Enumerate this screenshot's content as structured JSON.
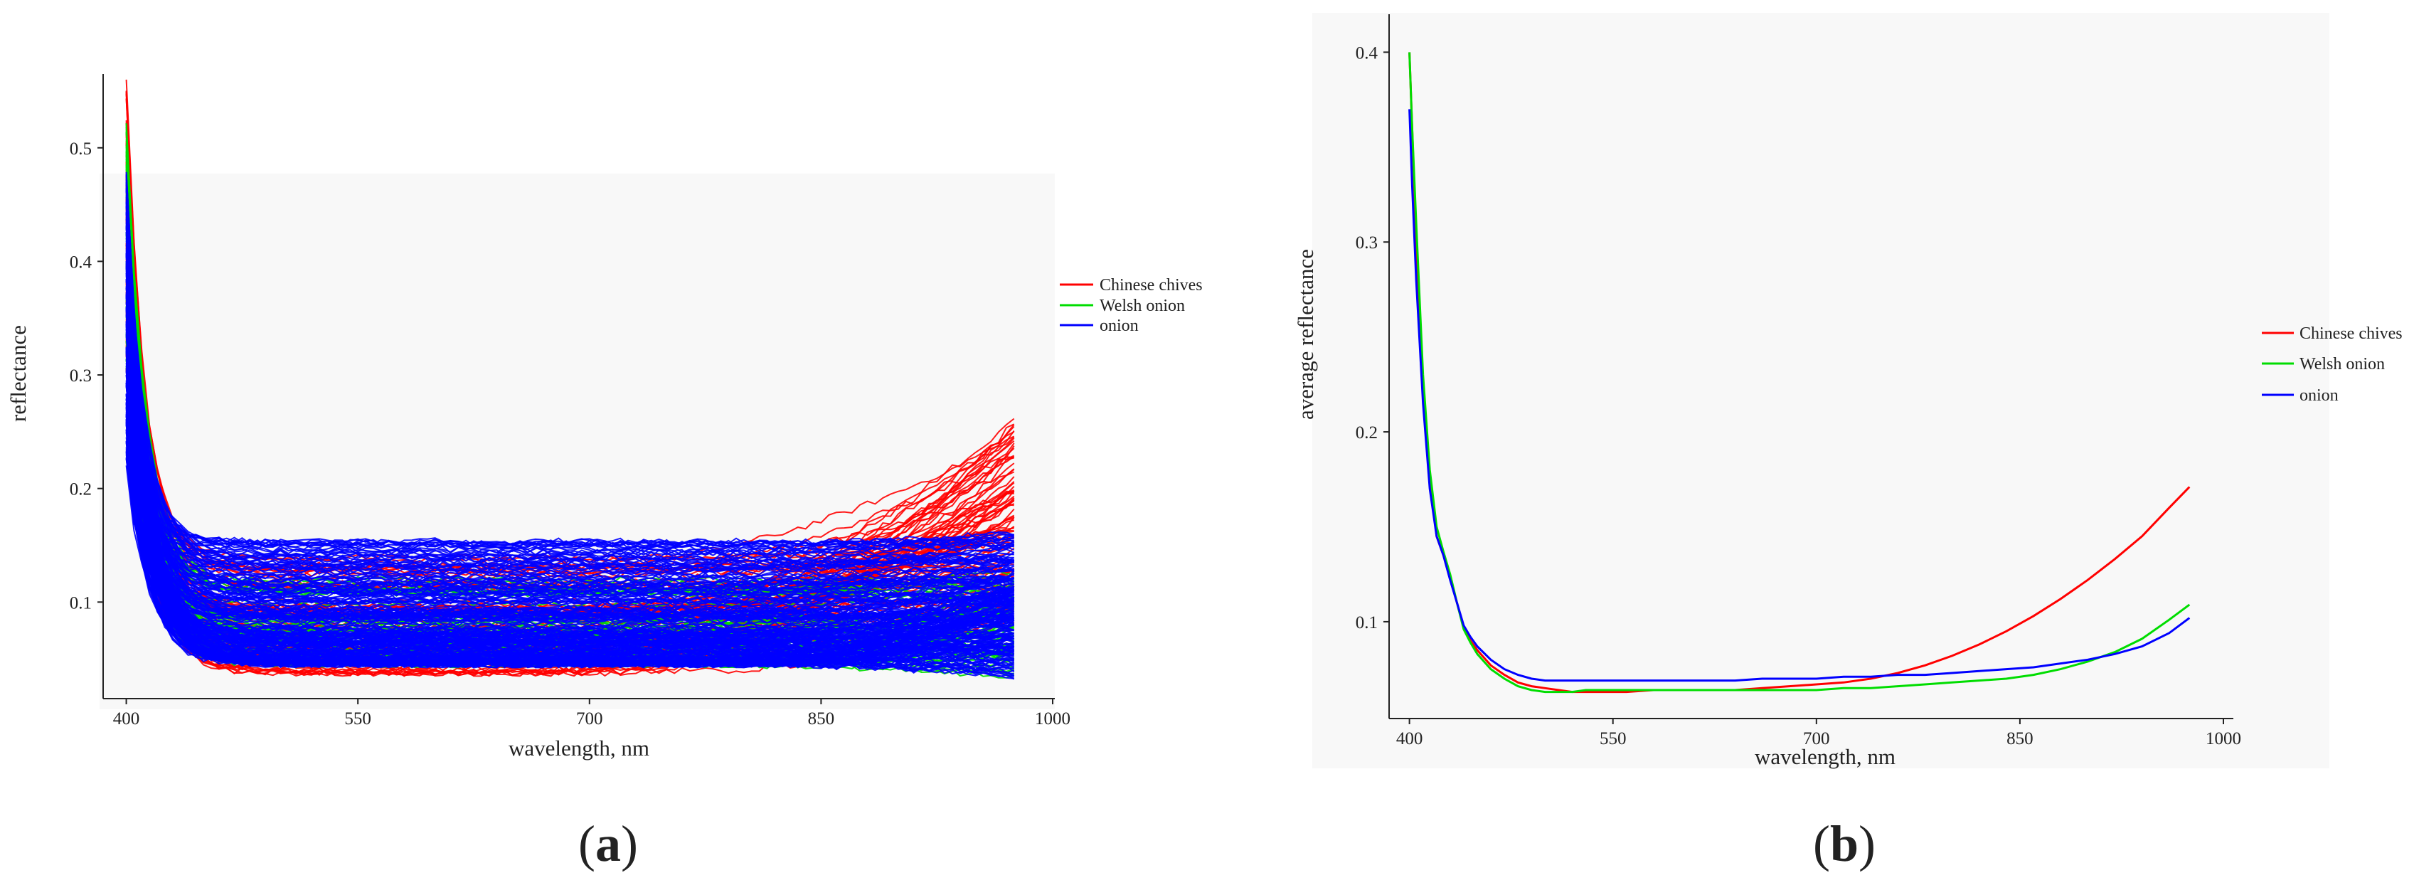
{
  "colors": {
    "Chinese chives": "#ff0000",
    "Welsh onion": "#00dd00",
    "onion": "#0000ff"
  },
  "chart_data": [
    {
      "panel": "(a)",
      "type": "line",
      "xlabel": "wavelength, nm",
      "ylabel": "reflectance",
      "xlim": [
        385,
        1000
      ],
      "ylim": [
        0.015,
        0.565
      ],
      "xticks": [
        "400",
        "550",
        "700",
        "850",
        "1000"
      ],
      "yticks": [
        "0.1",
        "0.2",
        "0.3",
        "0.4",
        "0.5"
      ],
      "grid": false,
      "legend_position": "right",
      "legend": [
        "Chinese chives",
        "Welsh onion",
        "onion"
      ],
      "series_groups": [
        {
          "name": "Chinese chives",
          "count": 85,
          "peak_at_400": [
            0.3,
            0.56
          ],
          "plateau_550_700": [
            0.035,
            0.14
          ],
          "end_975": [
            0.07,
            0.26
          ]
        },
        {
          "name": "Welsh onion",
          "count": 60,
          "peak_at_400": [
            0.3,
            0.53
          ],
          "plateau_550_700": [
            0.045,
            0.12
          ],
          "end_975": [
            0.06,
            0.15
          ]
        },
        {
          "name": "onion",
          "count": 210,
          "peak_at_400": [
            0.22,
            0.48
          ],
          "plateau_550_700": [
            0.045,
            0.155
          ],
          "end_975": [
            0.06,
            0.18
          ]
        }
      ]
    },
    {
      "panel": "(b)",
      "type": "line",
      "xlabel": "wavelength, nm",
      "ylabel": "average reflectance",
      "xlim": [
        385,
        1000
      ],
      "ylim": [
        0.049,
        0.42
      ],
      "xticks": [
        "400",
        "550",
        "700",
        "850",
        "1000"
      ],
      "yticks": [
        "0.1",
        "0.2",
        "0.3",
        "0.4"
      ],
      "grid": false,
      "legend_position": "right",
      "x": [
        400,
        402,
        405,
        410,
        415,
        420,
        425,
        430,
        435,
        440,
        445,
        450,
        460,
        470,
        480,
        490,
        500,
        510,
        520,
        530,
        540,
        550,
        560,
        580,
        600,
        620,
        640,
        660,
        680,
        700,
        720,
        740,
        760,
        780,
        800,
        820,
        840,
        860,
        880,
        900,
        920,
        940,
        960,
        975
      ],
      "series": [
        {
          "name": "Chinese chives",
          "values": [
            0.4,
            0.36,
            0.3,
            0.22,
            0.175,
            0.145,
            0.135,
            0.123,
            0.11,
            0.097,
            0.09,
            0.085,
            0.077,
            0.072,
            0.068,
            0.066,
            0.065,
            0.064,
            0.063,
            0.063,
            0.063,
            0.063,
            0.063,
            0.064,
            0.064,
            0.064,
            0.064,
            0.065,
            0.066,
            0.067,
            0.068,
            0.07,
            0.073,
            0.077,
            0.082,
            0.088,
            0.095,
            0.103,
            0.112,
            0.122,
            0.133,
            0.145,
            0.16,
            0.171
          ]
        },
        {
          "name": "Welsh onion",
          "values": [
            0.4,
            0.36,
            0.31,
            0.23,
            0.18,
            0.15,
            0.137,
            0.125,
            0.11,
            0.096,
            0.089,
            0.083,
            0.075,
            0.07,
            0.066,
            0.064,
            0.063,
            0.063,
            0.063,
            0.064,
            0.064,
            0.064,
            0.064,
            0.064,
            0.064,
            0.064,
            0.064,
            0.064,
            0.064,
            0.064,
            0.065,
            0.065,
            0.066,
            0.067,
            0.068,
            0.069,
            0.07,
            0.072,
            0.075,
            0.079,
            0.084,
            0.091,
            0.101,
            0.109
          ]
        },
        {
          "name": "onion",
          "values": [
            0.37,
            0.33,
            0.28,
            0.215,
            0.17,
            0.145,
            0.135,
            0.122,
            0.11,
            0.098,
            0.092,
            0.087,
            0.08,
            0.075,
            0.072,
            0.07,
            0.069,
            0.069,
            0.069,
            0.069,
            0.069,
            0.069,
            0.069,
            0.069,
            0.069,
            0.069,
            0.069,
            0.07,
            0.07,
            0.07,
            0.071,
            0.071,
            0.072,
            0.072,
            0.073,
            0.074,
            0.075,
            0.076,
            0.078,
            0.08,
            0.083,
            0.087,
            0.094,
            0.102
          ]
        }
      ]
    }
  ]
}
